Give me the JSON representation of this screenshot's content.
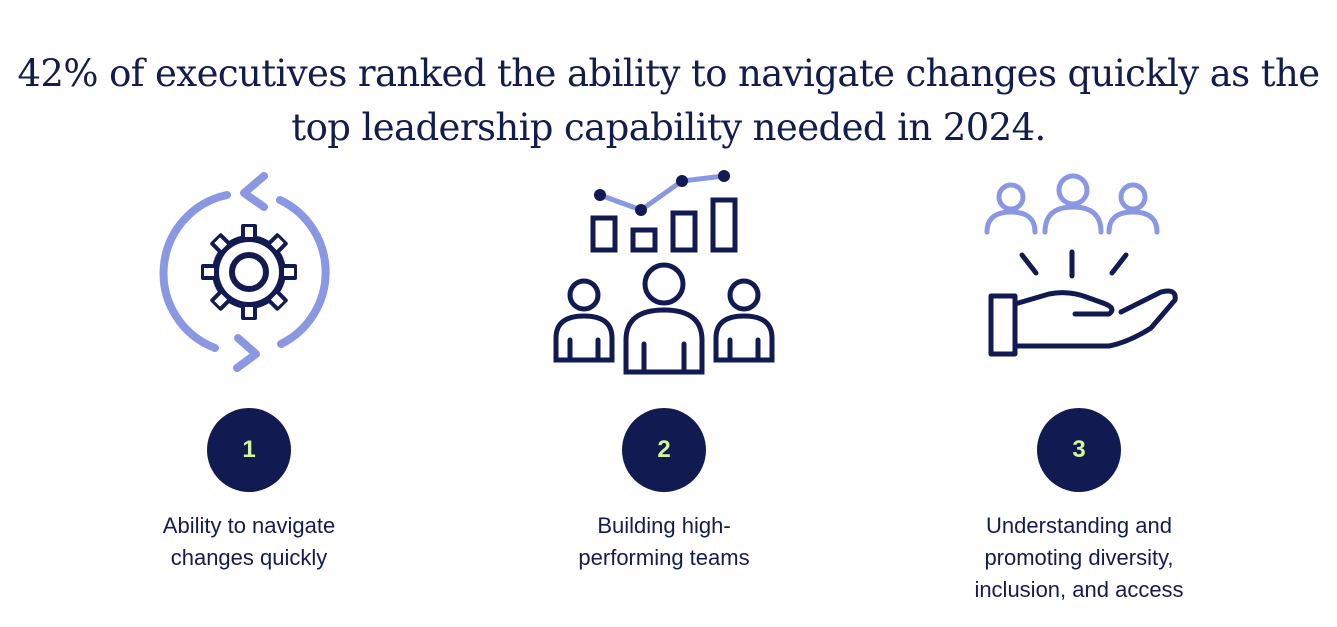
{
  "headline": {
    "line1": "42% of executives ranked the ability to navigate changes quickly as the",
    "line2": "top leadership capability needed in 2024."
  },
  "colors": {
    "navy": "#121a52",
    "periwinkle": "#8a97e2",
    "badge_text": "#d6f59a"
  },
  "items": [
    {
      "number": "1",
      "icon": "gear-with-cycle-arrows-icon",
      "label_lines": [
        "Ability to navigate",
        "changes quickly"
      ]
    },
    {
      "number": "2",
      "icon": "team-with-growth-chart-icon",
      "label_lines": [
        "Building high-",
        "performing teams"
      ]
    },
    {
      "number": "3",
      "icon": "hand-offering-people-icon",
      "label_lines": [
        "Understanding and",
        "promoting diversity,",
        "inclusion, and access"
      ]
    }
  ]
}
